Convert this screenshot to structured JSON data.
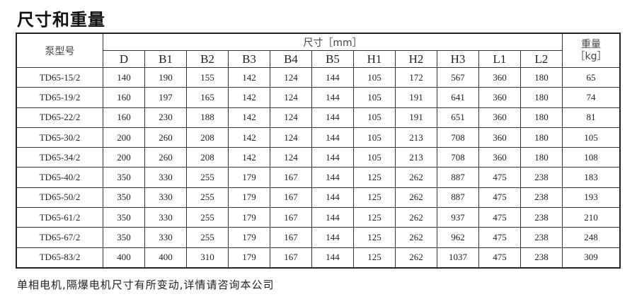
{
  "title": "尺寸和重量",
  "table": {
    "model_header": "泵型号",
    "dim_header": "尺寸［mm］",
    "weight_header_1": "重量",
    "weight_header_2": "［kg］",
    "columns": [
      "D",
      "B1",
      "B2",
      "B3",
      "B4",
      "B5",
      "H1",
      "H2",
      "H3",
      "L1",
      "L2"
    ],
    "rows": [
      [
        "TD65-15/2",
        "140",
        "190",
        "155",
        "142",
        "124",
        "144",
        "105",
        "172",
        "567",
        "360",
        "180",
        "65"
      ],
      [
        "TD65-19/2",
        "160",
        "197",
        "165",
        "142",
        "124",
        "144",
        "105",
        "191",
        "641",
        "360",
        "180",
        "74"
      ],
      [
        "TD65-22/2",
        "160",
        "230",
        "188",
        "142",
        "124",
        "144",
        "105",
        "191",
        "651",
        "360",
        "180",
        "81"
      ],
      [
        "TD65-30/2",
        "200",
        "260",
        "208",
        "142",
        "124",
        "144",
        "105",
        "213",
        "708",
        "360",
        "180",
        "105"
      ],
      [
        "TD65-34/2",
        "200",
        "260",
        "208",
        "142",
        "124",
        "144",
        "105",
        "213",
        "708",
        "360",
        "180",
        "108"
      ],
      [
        "TD65-40/2",
        "350",
        "330",
        "255",
        "179",
        "167",
        "144",
        "125",
        "262",
        "887",
        "475",
        "238",
        "183"
      ],
      [
        "TD65-50/2",
        "350",
        "330",
        "255",
        "179",
        "167",
        "144",
        "125",
        "262",
        "887",
        "475",
        "238",
        "193"
      ],
      [
        "TD65-61/2",
        "350",
        "330",
        "255",
        "179",
        "167",
        "144",
        "125",
        "262",
        "937",
        "475",
        "238",
        "210"
      ],
      [
        "TD65-67/2",
        "350",
        "330",
        "255",
        "179",
        "167",
        "144",
        "125",
        "262",
        "962",
        "475",
        "238",
        "248"
      ],
      [
        "TD65-83/2",
        "400",
        "400",
        "310",
        "179",
        "167",
        "144",
        "125",
        "262",
        "1037",
        "475",
        "238",
        "309"
      ]
    ]
  },
  "footer": "单相电机,隔爆电机尺寸有所变动,详情请咨询本公司"
}
